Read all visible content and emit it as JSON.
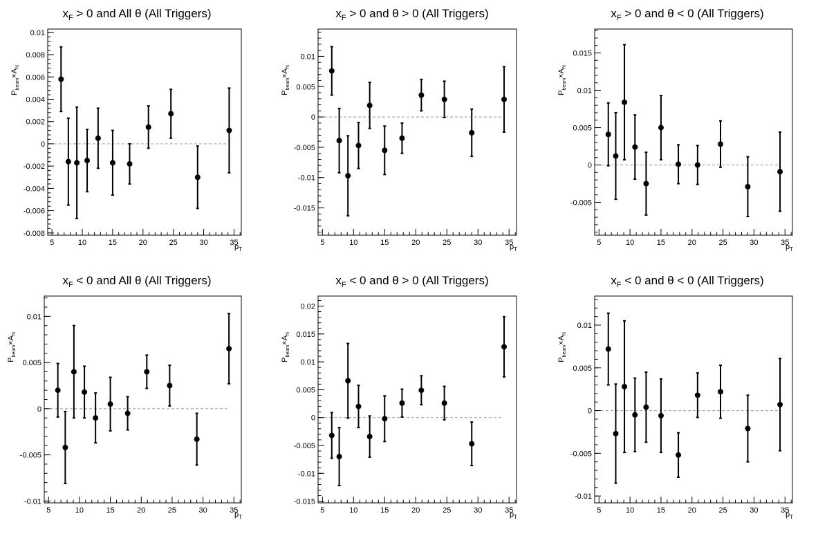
{
  "chart_data": [
    {
      "type": "scatter",
      "title": {
        "main": "x > 0 and All θ (All Triggers)",
        "lhs": "x",
        "sub": "F",
        "rest": " > 0 and All θ (All Triggers)"
      },
      "xlabel": {
        "base": "p",
        "sub": "T"
      },
      "ylabel": {
        "p": "P",
        "beam": "beam",
        "times": "×A",
        "n": "N"
      },
      "xlim": [
        4.3,
        36.2
      ],
      "ylim": [
        -0.0082,
        0.0103
      ],
      "xticks": [
        5,
        10,
        15,
        20,
        25,
        30,
        35
      ],
      "yticks": [
        -0.008,
        -0.006,
        -0.004,
        -0.002,
        0,
        0.002,
        0.004,
        0.006,
        0.008,
        0.01
      ],
      "ytick_labels": [
        "-0.008",
        "-0.006",
        "-0.004",
        "-0.002",
        "0",
        "0.002",
        "0.004",
        "0.006",
        "0.008",
        "0.01"
      ],
      "reference_line": 0,
      "x": [
        6.5,
        7.7,
        9.1,
        10.8,
        12.6,
        15.0,
        17.8,
        20.9,
        24.6,
        29.0,
        34.2
      ],
      "y": [
        0.0058,
        -0.0016,
        -0.0017,
        -0.0015,
        0.0005,
        -0.0017,
        -0.0018,
        0.0015,
        0.0027,
        -0.003,
        0.0012
      ],
      "err": [
        0.0029,
        0.0039,
        0.005,
        0.0028,
        0.0027,
        0.0029,
        0.0018,
        0.0019,
        0.0022,
        0.0028,
        0.0038
      ]
    },
    {
      "type": "scatter",
      "title": {
        "lhs": "x",
        "sub": "F",
        "rest": " > 0 and θ > 0 (All Triggers)"
      },
      "xlabel": {
        "base": "p",
        "sub": "T"
      },
      "ylabel": {
        "p": "P",
        "beam": "beam",
        "times": "×A",
        "n": "N"
      },
      "xlim": [
        4.3,
        36.2
      ],
      "ylim": [
        -0.0195,
        0.0145
      ],
      "xticks": [
        5,
        10,
        15,
        20,
        25,
        30,
        35
      ],
      "yticks": [
        -0.015,
        -0.01,
        -0.005,
        0,
        0.005,
        0.01
      ],
      "ytick_labels": [
        "-0.015",
        "-0.01",
        "-0.005",
        "0",
        "0.005",
        "0.01"
      ],
      "reference_line": 0,
      "x": [
        6.5,
        7.7,
        9.1,
        10.8,
        12.6,
        15.0,
        17.8,
        20.9,
        24.6,
        29.0,
        34.2
      ],
      "y": [
        0.0076,
        -0.0039,
        -0.0097,
        -0.0047,
        0.0019,
        -0.0055,
        -0.0035,
        0.0036,
        0.0029,
        -0.0026,
        0.0029
      ],
      "err": [
        0.004,
        0.0053,
        0.0066,
        0.0038,
        0.0038,
        0.004,
        0.0025,
        0.0026,
        0.003,
        0.0039,
        0.0054
      ]
    },
    {
      "type": "scatter",
      "title": {
        "lhs": "x",
        "sub": "F",
        "rest": " > 0 and θ < 0 (All Triggers)"
      },
      "xlabel": {
        "base": "p",
        "sub": "T"
      },
      "ylabel": {
        "p": "P",
        "beam": "beam",
        "times": "×A",
        "n": "N"
      },
      "xlim": [
        4.3,
        36.2
      ],
      "ylim": [
        -0.0094,
        0.0182
      ],
      "xticks": [
        5,
        10,
        15,
        20,
        25,
        30,
        35
      ],
      "yticks": [
        -0.005,
        0,
        0.005,
        0.01,
        0.015
      ],
      "ytick_labels": [
        "-0.005",
        "0",
        "0.005",
        "0.01",
        "0.015"
      ],
      "reference_line": 0,
      "x": [
        6.5,
        7.7,
        9.1,
        10.8,
        12.6,
        15.0,
        17.8,
        20.9,
        24.6,
        29.0,
        34.2
      ],
      "y": [
        0.0041,
        0.0012,
        0.0084,
        0.0024,
        -0.0025,
        0.005,
        0.0001,
        0.0,
        0.0028,
        -0.0029,
        -0.0009
      ],
      "err": [
        0.0042,
        0.0058,
        0.0077,
        0.0043,
        0.0042,
        0.0043,
        0.0026,
        0.0026,
        0.0031,
        0.004,
        0.0053
      ]
    },
    {
      "type": "scatter",
      "title": {
        "lhs": "x",
        "sub": "F",
        "rest": " < 0 and All θ (All Triggers)"
      },
      "xlabel": {
        "base": "p",
        "sub": "T"
      },
      "ylabel": {
        "p": "P",
        "beam": "beam",
        "times": "×A",
        "n": "N"
      },
      "xlim": [
        4.3,
        36.2
      ],
      "ylim": [
        -0.0102,
        0.0122
      ],
      "xticks": [
        5,
        10,
        15,
        20,
        25,
        30,
        35
      ],
      "yticks": [
        -0.01,
        -0.005,
        0,
        0.005,
        0.01
      ],
      "ytick_labels": [
        "-0.01",
        "-0.005",
        "0",
        "0.005",
        "0.01"
      ],
      "reference_line": 0,
      "x": [
        6.5,
        7.7,
        9.1,
        10.8,
        12.6,
        15.0,
        17.8,
        20.9,
        24.6,
        29.0,
        34.2
      ],
      "y": [
        0.002,
        -0.0042,
        0.004,
        0.0018,
        -0.001,
        0.0005,
        -0.0005,
        0.004,
        0.0025,
        -0.0033,
        0.0065
      ],
      "err": [
        0.0029,
        0.0039,
        0.005,
        0.0028,
        0.0027,
        0.0029,
        0.0018,
        0.0018,
        0.0022,
        0.0028,
        0.0038
      ]
    },
    {
      "type": "scatter",
      "title": {
        "lhs": "x",
        "sub": "F",
        "rest": " < 0 and θ > 0 (All Triggers)"
      },
      "xlabel": {
        "base": "p",
        "sub": "T"
      },
      "ylabel": {
        "p": "P",
        "beam": "beam",
        "times": "×A",
        "n": "N"
      },
      "xlim": [
        4.3,
        36.2
      ],
      "ylim": [
        -0.0153,
        0.0218
      ],
      "xticks": [
        5,
        10,
        15,
        20,
        25,
        30,
        35
      ],
      "yticks": [
        -0.015,
        -0.01,
        -0.005,
        0,
        0.005,
        0.01,
        0.015,
        0.02
      ],
      "ytick_labels": [
        "-0.015",
        "-0.01",
        "-0.005",
        "0",
        "0.005",
        "0.01",
        "0.015",
        "0.02"
      ],
      "reference_line": 0,
      "x": [
        6.5,
        7.7,
        9.1,
        10.8,
        12.6,
        15.0,
        17.8,
        20.9,
        24.6,
        29.0,
        34.2
      ],
      "y": [
        -0.0032,
        -0.007,
        0.0066,
        0.002,
        -0.0034,
        -0.0002,
        0.0026,
        0.0049,
        0.0026,
        -0.0047,
        0.0127
      ],
      "err": [
        0.0041,
        0.0052,
        0.0067,
        0.0038,
        0.0037,
        0.0041,
        0.0025,
        0.0026,
        0.003,
        0.0039,
        0.0054
      ]
    },
    {
      "type": "scatter",
      "title": {
        "lhs": "x",
        "sub": "F",
        "rest": " < 0 and θ < 0 (All Triggers)"
      },
      "xlabel": {
        "base": "p",
        "sub": "T"
      },
      "ylabel": {
        "p": "P",
        "beam": "beam",
        "times": "×A",
        "n": "N"
      },
      "xlim": [
        4.3,
        36.2
      ],
      "ylim": [
        -0.0108,
        0.0134
      ],
      "xticks": [
        5,
        10,
        15,
        20,
        25,
        30,
        35
      ],
      "yticks": [
        -0.01,
        -0.005,
        0,
        0.005,
        0.01
      ],
      "ytick_labels": [
        "-0.01",
        "-0.005",
        "0",
        "0.005",
        "0.01"
      ],
      "reference_line": 0,
      "x": [
        6.5,
        7.7,
        9.1,
        10.8,
        12.6,
        15.0,
        17.8,
        20.9,
        24.6,
        29.0,
        34.2
      ],
      "y": [
        0.0072,
        -0.0027,
        0.0028,
        -0.0005,
        0.0004,
        -0.0006,
        -0.0052,
        0.0018,
        0.0022,
        -0.0021,
        0.0007
      ],
      "err": [
        0.0042,
        0.0058,
        0.0077,
        0.0043,
        0.0041,
        0.0043,
        0.0026,
        0.0026,
        0.0031,
        0.0039,
        0.0054
      ]
    }
  ]
}
